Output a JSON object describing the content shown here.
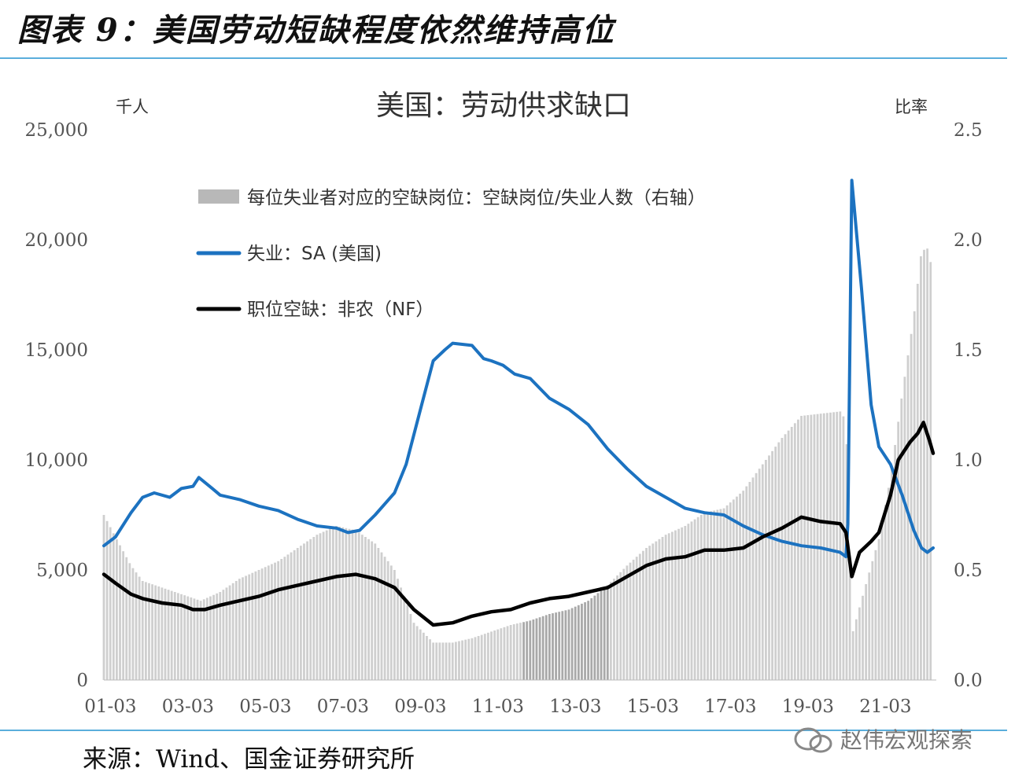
{
  "figure": {
    "title": "图表 9：美国劳动短缺程度依然维持高位",
    "source": "来源：Wind、国金证券研究所",
    "watermark": "赵伟宏观探索"
  },
  "colors": {
    "unemployment": "#1c72c0",
    "openings": "#000000",
    "ratio": "#cfcfcf",
    "ratio_dark": "#a9a9a9",
    "rule": "#5aaedc"
  },
  "chart_data": {
    "type": "line",
    "title": "美国：劳动供求缺口",
    "left_axis_unit": "千人",
    "right_axis_unit": "比率",
    "left_ylim": [
      0,
      25000
    ],
    "right_ylim": [
      0,
      2.5
    ],
    "left_ticks": [
      "0",
      "5,000",
      "10,000",
      "15,000",
      "20,000",
      "25,000"
    ],
    "right_ticks": [
      "0.0",
      "0.5",
      "1.0",
      "1.5",
      "2.0",
      "2.5"
    ],
    "x_ticks": [
      "01-03",
      "03-03",
      "05-03",
      "07-03",
      "09-03",
      "11-03",
      "13-03",
      "15-03",
      "17-03",
      "19-03",
      "21-03"
    ],
    "x_range": [
      2001.0,
      2022.4
    ],
    "legend": [
      {
        "name": "每位失业者对应的空缺岗位：空缺岗位/失业人数（右轴）",
        "kind": "bar"
      },
      {
        "name": "失业：SA (美国)",
        "kind": "line-blue"
      },
      {
        "name": "职位空缺：非农（NF）",
        "kind": "line-black"
      }
    ],
    "series": [
      {
        "name": "失业：SA (美国)",
        "axis": "left",
        "points": [
          [
            2001.0,
            6100
          ],
          [
            2001.3,
            6500
          ],
          [
            2001.7,
            7600
          ],
          [
            2002.0,
            8300
          ],
          [
            2002.3,
            8500
          ],
          [
            2002.7,
            8300
          ],
          [
            2003.0,
            8700
          ],
          [
            2003.3,
            8800
          ],
          [
            2003.45,
            9200
          ],
          [
            2003.8,
            8700
          ],
          [
            2004.0,
            8400
          ],
          [
            2004.5,
            8200
          ],
          [
            2005.0,
            7900
          ],
          [
            2005.5,
            7700
          ],
          [
            2006.0,
            7300
          ],
          [
            2006.5,
            7000
          ],
          [
            2007.0,
            6900
          ],
          [
            2007.3,
            6700
          ],
          [
            2007.6,
            6800
          ],
          [
            2008.0,
            7500
          ],
          [
            2008.5,
            8500
          ],
          [
            2008.8,
            9800
          ],
          [
            2009.2,
            12500
          ],
          [
            2009.5,
            14500
          ],
          [
            2009.8,
            15000
          ],
          [
            2010.0,
            15300
          ],
          [
            2010.5,
            15200
          ],
          [
            2010.8,
            14600
          ],
          [
            2011.0,
            14500
          ],
          [
            2011.3,
            14300
          ],
          [
            2011.6,
            13900
          ],
          [
            2012.0,
            13700
          ],
          [
            2012.5,
            12800
          ],
          [
            2013.0,
            12300
          ],
          [
            2013.5,
            11600
          ],
          [
            2014.0,
            10500
          ],
          [
            2014.5,
            9600
          ],
          [
            2015.0,
            8800
          ],
          [
            2015.5,
            8300
          ],
          [
            2016.0,
            7800
          ],
          [
            2016.5,
            7600
          ],
          [
            2017.0,
            7500
          ],
          [
            2017.5,
            7000
          ],
          [
            2018.0,
            6600
          ],
          [
            2018.5,
            6300
          ],
          [
            2019.0,
            6100
          ],
          [
            2019.5,
            6000
          ],
          [
            2020.0,
            5800
          ],
          [
            2020.15,
            5600
          ],
          [
            2020.2,
            7100
          ],
          [
            2020.3,
            22700
          ],
          [
            2020.55,
            17800
          ],
          [
            2020.8,
            12500
          ],
          [
            2021.0,
            10600
          ],
          [
            2021.3,
            9800
          ],
          [
            2021.6,
            8400
          ],
          [
            2021.9,
            6800
          ],
          [
            2022.1,
            6000
          ],
          [
            2022.25,
            5800
          ],
          [
            2022.4,
            6000
          ]
        ]
      },
      {
        "name": "职位空缺：非农（NF）",
        "axis": "left",
        "points": [
          [
            2001.0,
            4800
          ],
          [
            2001.3,
            4400
          ],
          [
            2001.7,
            3900
          ],
          [
            2002.0,
            3700
          ],
          [
            2002.5,
            3500
          ],
          [
            2003.0,
            3400
          ],
          [
            2003.3,
            3200
          ],
          [
            2003.6,
            3200
          ],
          [
            2004.0,
            3400
          ],
          [
            2004.5,
            3600
          ],
          [
            2005.0,
            3800
          ],
          [
            2005.5,
            4100
          ],
          [
            2006.0,
            4300
          ],
          [
            2006.5,
            4500
          ],
          [
            2007.0,
            4700
          ],
          [
            2007.5,
            4800
          ],
          [
            2008.0,
            4600
          ],
          [
            2008.5,
            4200
          ],
          [
            2009.0,
            3200
          ],
          [
            2009.5,
            2500
          ],
          [
            2010.0,
            2600
          ],
          [
            2010.5,
            2900
          ],
          [
            2011.0,
            3100
          ],
          [
            2011.5,
            3200
          ],
          [
            2012.0,
            3500
          ],
          [
            2012.5,
            3700
          ],
          [
            2013.0,
            3800
          ],
          [
            2013.5,
            4000
          ],
          [
            2014.0,
            4200
          ],
          [
            2014.5,
            4700
          ],
          [
            2015.0,
            5200
          ],
          [
            2015.5,
            5500
          ],
          [
            2016.0,
            5600
          ],
          [
            2016.5,
            5900
          ],
          [
            2017.0,
            5900
          ],
          [
            2017.5,
            6000
          ],
          [
            2018.0,
            6500
          ],
          [
            2018.5,
            6900
          ],
          [
            2019.0,
            7400
          ],
          [
            2019.5,
            7200
          ],
          [
            2020.0,
            7100
          ],
          [
            2020.15,
            6700
          ],
          [
            2020.3,
            4700
          ],
          [
            2020.5,
            5800
          ],
          [
            2020.8,
            6300
          ],
          [
            2021.0,
            6700
          ],
          [
            2021.3,
            8400
          ],
          [
            2021.5,
            10000
          ],
          [
            2021.8,
            10800
          ],
          [
            2022.0,
            11200
          ],
          [
            2022.15,
            11700
          ],
          [
            2022.3,
            10900
          ],
          [
            2022.4,
            10300
          ]
        ]
      },
      {
        "name": "每位失业者对应的空缺岗位：空缺岗位/失业人数（右轴）",
        "axis": "right",
        "points": [
          [
            2001.0,
            0.75
          ],
          [
            2001.3,
            0.65
          ],
          [
            2001.7,
            0.52
          ],
          [
            2002.0,
            0.45
          ],
          [
            2002.5,
            0.42
          ],
          [
            2003.0,
            0.39
          ],
          [
            2003.5,
            0.36
          ],
          [
            2004.0,
            0.4
          ],
          [
            2004.5,
            0.46
          ],
          [
            2005.0,
            0.5
          ],
          [
            2005.5,
            0.54
          ],
          [
            2006.0,
            0.6
          ],
          [
            2006.5,
            0.66
          ],
          [
            2007.0,
            0.7
          ],
          [
            2007.5,
            0.68
          ],
          [
            2008.0,
            0.62
          ],
          [
            2008.5,
            0.5
          ],
          [
            2009.0,
            0.26
          ],
          [
            2009.5,
            0.17
          ],
          [
            2010.0,
            0.17
          ],
          [
            2010.5,
            0.19
          ],
          [
            2011.0,
            0.22
          ],
          [
            2011.5,
            0.25
          ],
          [
            2012.0,
            0.27
          ],
          [
            2012.5,
            0.3
          ],
          [
            2013.0,
            0.32
          ],
          [
            2013.5,
            0.36
          ],
          [
            2014.0,
            0.43
          ],
          [
            2014.5,
            0.52
          ],
          [
            2015.0,
            0.6
          ],
          [
            2015.5,
            0.66
          ],
          [
            2016.0,
            0.7
          ],
          [
            2016.5,
            0.76
          ],
          [
            2017.0,
            0.78
          ],
          [
            2017.5,
            0.86
          ],
          [
            2018.0,
            0.98
          ],
          [
            2018.5,
            1.1
          ],
          [
            2019.0,
            1.2
          ],
          [
            2019.5,
            1.21
          ],
          [
            2020.0,
            1.22
          ],
          [
            2020.15,
            1.18
          ],
          [
            2020.3,
            0.2
          ],
          [
            2020.5,
            0.33
          ],
          [
            2020.8,
            0.52
          ],
          [
            2021.0,
            0.64
          ],
          [
            2021.3,
            0.92
          ],
          [
            2021.6,
            1.3
          ],
          [
            2021.9,
            1.65
          ],
          [
            2022.1,
            1.95
          ],
          [
            2022.25,
            1.96
          ],
          [
            2022.4,
            1.85
          ]
        ]
      }
    ]
  }
}
